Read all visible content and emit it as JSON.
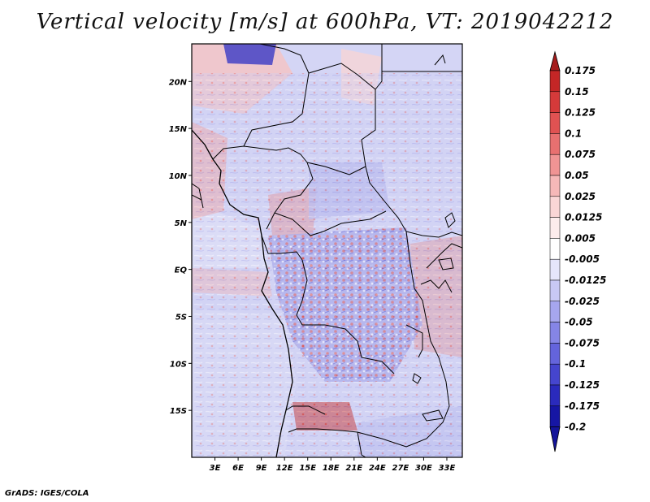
{
  "title": "Vertical velocity [m/s] at 600hPa, VT: 2019042212",
  "credit": "GrADS: IGES/COLA",
  "map": {
    "lon_range": [
      0,
      35
    ],
    "lat_range": [
      -20,
      24
    ],
    "lat_ticks": [
      {
        "label": "20N",
        "value": 20
      },
      {
        "label": "15N",
        "value": 15
      },
      {
        "label": "10N",
        "value": 10
      },
      {
        "label": "5N",
        "value": 5
      },
      {
        "label": "EQ",
        "value": 0
      },
      {
        "label": "5S",
        "value": -5
      },
      {
        "label": "10S",
        "value": -10
      },
      {
        "label": "15S",
        "value": -15
      }
    ],
    "lon_ticks": [
      {
        "label": "3E",
        "value": 3
      },
      {
        "label": "6E",
        "value": 6
      },
      {
        "label": "9E",
        "value": 9
      },
      {
        "label": "12E",
        "value": 12
      },
      {
        "label": "15E",
        "value": 15
      },
      {
        "label": "18E",
        "value": 18
      },
      {
        "label": "21E",
        "value": 21
      },
      {
        "label": "24E",
        "value": 24
      },
      {
        "label": "27E",
        "value": 27
      },
      {
        "label": "30E",
        "value": 30
      },
      {
        "label": "33E",
        "value": 33
      }
    ]
  },
  "colorbar": {
    "levels": [
      {
        "label": "0.175",
        "color": "#a51c1c"
      },
      {
        "label": "0.15",
        "color": "#c42626"
      },
      {
        "label": "0.125",
        "color": "#d53a3a"
      },
      {
        "label": "0.1",
        "color": "#e05252"
      },
      {
        "label": "0.075",
        "color": "#e87070"
      },
      {
        "label": "0.05",
        "color": "#f09494"
      },
      {
        "label": "0.025",
        "color": "#f6b8b8"
      },
      {
        "label": "0.0125",
        "color": "#fad6d6"
      },
      {
        "label": "0.005",
        "color": "#fdecec"
      },
      {
        "label": "-0.005",
        "color": "#ffffff"
      },
      {
        "label": "-0.0125",
        "color": "#e6e6fb"
      },
      {
        "label": "-0.025",
        "color": "#c8c8f4"
      },
      {
        "label": "-0.05",
        "color": "#a6a6ee"
      },
      {
        "label": "-0.075",
        "color": "#8585e6"
      },
      {
        "label": "-0.1",
        "color": "#6464dc"
      },
      {
        "label": "-0.125",
        "color": "#4545ce"
      },
      {
        "label": "-0.175",
        "color": "#2a2abc"
      },
      {
        "label": "-0.2",
        "color": "#1616a4"
      }
    ],
    "top_color": "#a51c1c",
    "bottom_color": "#14149a"
  }
}
